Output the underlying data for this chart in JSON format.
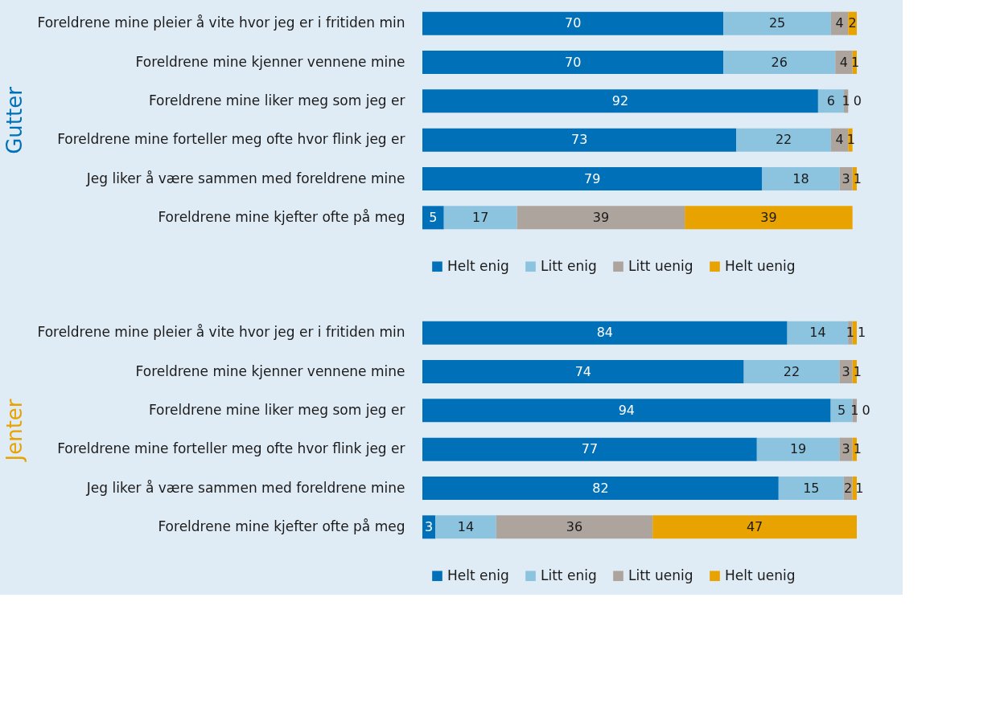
{
  "chart_data": [
    {
      "type": "bar",
      "orientation": "horizontal",
      "stacked": true,
      "data_labels": true,
      "legend": "bottom",
      "title": "Gutter",
      "categories": [
        "Foreldrene mine pleier å vite hvor jeg er i fritiden min",
        "Foreldrene mine kjenner vennene mine",
        "Foreldrene mine liker meg som jeg er",
        "Foreldrene mine forteller meg ofte hvor flink jeg er",
        "Jeg liker å være sammen med foreldrene mine",
        "Foreldrene mine kjefter ofte på meg"
      ],
      "series": [
        {
          "name": "Helt enig",
          "color": "#0070b8",
          "values": [
            70,
            70,
            92,
            73,
            79,
            5
          ]
        },
        {
          "name": "Litt enig",
          "color": "#8cc4e0",
          "values": [
            25,
            26,
            6,
            22,
            18,
            17
          ]
        },
        {
          "name": "Litt uenig",
          "color": "#ada59d",
          "values": [
            4,
            4,
            1,
            4,
            3,
            39
          ]
        },
        {
          "name": "Helt uenig",
          "color": "#e8a300",
          "values": [
            2,
            1,
            0,
            1,
            1,
            39
          ]
        }
      ]
    },
    {
      "type": "bar",
      "orientation": "horizontal",
      "stacked": true,
      "data_labels": true,
      "legend": "bottom",
      "title": "Jenter",
      "categories": [
        "Foreldrene mine pleier å vite hvor jeg er i fritiden min",
        "Foreldrene mine kjenner vennene mine",
        "Foreldrene mine liker meg som jeg er",
        "Foreldrene mine forteller meg ofte hvor flink jeg er",
        "Jeg liker å være sammen med foreldrene mine",
        "Foreldrene mine kjefter ofte på meg"
      ],
      "series": [
        {
          "name": "Helt enig",
          "color": "#0070b8",
          "values": [
            84,
            74,
            94,
            77,
            82,
            3
          ]
        },
        {
          "name": "Litt enig",
          "color": "#8cc4e0",
          "values": [
            14,
            22,
            5,
            19,
            15,
            14
          ]
        },
        {
          "name": "Litt uenig",
          "color": "#ada59d",
          "values": [
            1,
            3,
            1,
            3,
            2,
            36
          ]
        },
        {
          "name": "Helt uenig",
          "color": "#e8a300",
          "values": [
            1,
            1,
            0,
            1,
            1,
            47
          ]
        }
      ]
    }
  ]
}
